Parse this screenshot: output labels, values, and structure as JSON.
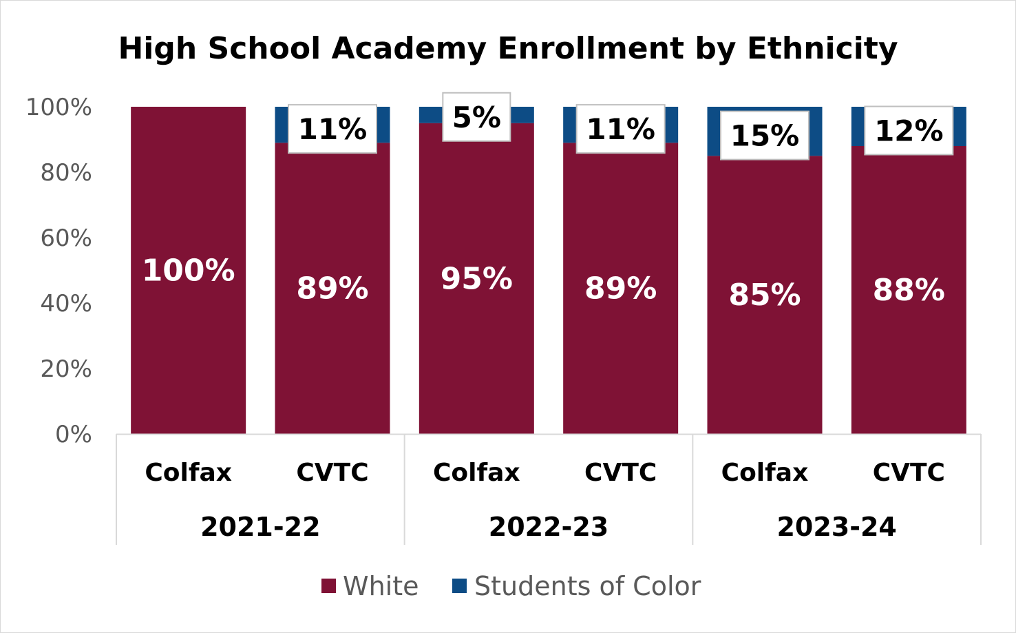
{
  "chart_data": {
    "type": "bar",
    "stacked": true,
    "title": "High School Academy Enrollment by Ethnicity",
    "xlabel": "",
    "ylabel": "",
    "ylim": [
      0,
      100
    ],
    "yticks": [
      "0%",
      "20%",
      "40%",
      "60%",
      "80%",
      "100%"
    ],
    "categories": [
      "Colfax",
      "CVTC",
      "Colfax",
      "CVTC",
      "Colfax",
      "CVTC"
    ],
    "groups": [
      {
        "label": "2021-22",
        "span": 2
      },
      {
        "label": "2022-23",
        "span": 2
      },
      {
        "label": "2023-24",
        "span": 2
      }
    ],
    "series": [
      {
        "name": "White",
        "color": "#7f1235",
        "values": [
          100,
          89,
          95,
          89,
          85,
          88
        ],
        "labels": [
          "100%",
          "89%",
          "95%",
          "89%",
          "85%",
          "88%"
        ]
      },
      {
        "name": "Students of Color",
        "color": "#0d4c85",
        "values": [
          0,
          11,
          5,
          11,
          15,
          12
        ],
        "labels": [
          "",
          "11%",
          "5%",
          "11%",
          "15%",
          "12%"
        ]
      }
    ],
    "legend_position": "bottom"
  }
}
